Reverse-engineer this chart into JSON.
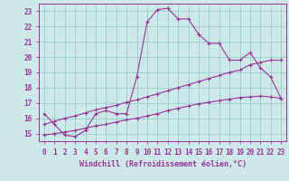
{
  "xlabel": "Windchill (Refroidissement éolien,°C)",
  "bg_color": "#cce8e8",
  "line_color": "#993399",
  "grid_color": "#99cccc",
  "ylim": [
    14.5,
    23.5
  ],
  "xlim": [
    -0.5,
    23.5
  ],
  "yticks": [
    15,
    16,
    17,
    18,
    19,
    20,
    21,
    22,
    23
  ],
  "xticks": [
    0,
    1,
    2,
    3,
    4,
    5,
    6,
    7,
    8,
    9,
    10,
    11,
    12,
    13,
    14,
    15,
    16,
    17,
    18,
    19,
    20,
    21,
    22,
    23
  ],
  "line1_x": [
    0,
    1,
    2,
    3,
    4,
    5,
    6,
    7,
    8,
    9,
    10,
    11,
    12,
    13,
    14,
    15,
    16,
    17,
    18,
    19,
    20,
    21,
    22,
    23
  ],
  "line1_y": [
    16.3,
    15.6,
    14.9,
    14.8,
    15.2,
    16.3,
    16.5,
    16.3,
    16.3,
    18.7,
    22.3,
    23.1,
    23.2,
    22.5,
    22.5,
    21.5,
    20.9,
    20.9,
    19.8,
    19.8,
    20.3,
    19.3,
    18.7,
    17.3
  ],
  "line2_x": [
    0,
    1,
    2,
    3,
    4,
    5,
    6,
    7,
    8,
    9,
    10,
    11,
    12,
    13,
    14,
    15,
    16,
    17,
    18,
    19,
    20,
    21,
    22,
    23
  ],
  "line2_y": [
    15.6,
    15.8,
    16.0,
    16.15,
    16.35,
    16.55,
    16.7,
    16.85,
    17.05,
    17.2,
    17.4,
    17.6,
    17.8,
    18.0,
    18.2,
    18.4,
    18.6,
    18.8,
    19.0,
    19.15,
    19.5,
    19.65,
    19.8,
    19.8
  ],
  "line3_x": [
    0,
    1,
    2,
    3,
    4,
    5,
    6,
    7,
    8,
    9,
    10,
    11,
    12,
    13,
    14,
    15,
    16,
    17,
    18,
    19,
    20,
    21,
    22,
    23
  ],
  "line3_y": [
    14.9,
    15.0,
    15.1,
    15.2,
    15.35,
    15.5,
    15.6,
    15.75,
    15.9,
    16.0,
    16.15,
    16.3,
    16.5,
    16.65,
    16.8,
    16.95,
    17.05,
    17.15,
    17.25,
    17.35,
    17.4,
    17.45,
    17.4,
    17.3
  ],
  "spine_color": "#993399",
  "tick_labelsize": 5.5,
  "xlabel_fontsize": 6.0
}
